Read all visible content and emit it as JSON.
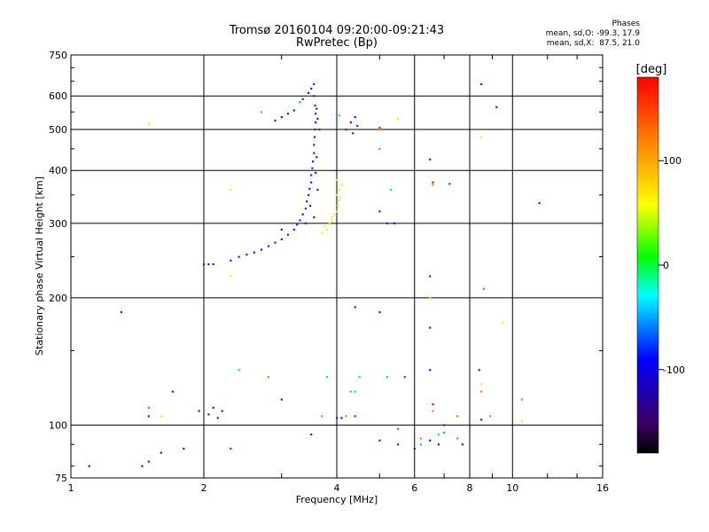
{
  "chart_data": {
    "type": "scatter",
    "title": "Tromsø 20160104 09:20:00-09:21:43",
    "subtitle": "RwPretec (Bp)",
    "xlabel": "Frequency [MHz]",
    "ylabel": "Stationary phase Virtual Height [km]",
    "xscale": "log2",
    "yscale": "log",
    "xlim": [
      1,
      16
    ],
    "ylim": [
      75,
      750
    ],
    "x_ticks": [
      1,
      2,
      4,
      6,
      8,
      10,
      16
    ],
    "x_tick_labels": [
      "1",
      "2",
      "4",
      "6",
      "8",
      "10",
      "16"
    ],
    "y_ticks": [
      75,
      100,
      200,
      300,
      400,
      500,
      600,
      750
    ],
    "y_tick_labels": [
      "75",
      "100",
      "200",
      "300",
      "400",
      "500",
      "600",
      "750"
    ],
    "grid": true,
    "stats": {
      "heading": "Phases",
      "line1": "mean, sd,O: -99.3, 17.9",
      "line2": "mean, sd,X:  87.5, 21.0"
    },
    "colorbar": {
      "label": "[deg]",
      "min": -180,
      "max": 180,
      "ticks": [
        100,
        0,
        -100
      ],
      "tick_labels": [
        "100",
        "0",
        "-100"
      ]
    },
    "series": [
      {
        "trace": "O",
        "color": "#1428e6",
        "points": [
          [
            2.0,
            240
          ],
          [
            2.05,
            240
          ],
          [
            2.1,
            240
          ],
          [
            2.3,
            245
          ],
          [
            2.4,
            250
          ],
          [
            2.5,
            253
          ],
          [
            2.6,
            256
          ],
          [
            2.7,
            260
          ],
          [
            2.8,
            265
          ],
          [
            2.9,
            270
          ],
          [
            3.0,
            275
          ],
          [
            3.1,
            282
          ],
          [
            3.2,
            290
          ],
          [
            3.25,
            298
          ],
          [
            3.3,
            305
          ],
          [
            3.35,
            315
          ],
          [
            3.4,
            325
          ],
          [
            3.42,
            338
          ],
          [
            3.45,
            350
          ],
          [
            3.47,
            362
          ],
          [
            3.5,
            375
          ],
          [
            3.5,
            390
          ],
          [
            3.52,
            405
          ],
          [
            3.53,
            420
          ],
          [
            3.55,
            440
          ],
          [
            3.55,
            460
          ],
          [
            3.56,
            480
          ],
          [
            3.57,
            500
          ],
          [
            3.58,
            520
          ],
          [
            3.58,
            545
          ],
          [
            3.57,
            570
          ],
          [
            3.55,
            600
          ],
          [
            3.5,
            625
          ],
          [
            3.55,
            640
          ],
          [
            3.45,
            610
          ],
          [
            3.35,
            590
          ],
          [
            3.6,
            560
          ],
          [
            3.62,
            530
          ],
          [
            3.65,
            500
          ],
          [
            3.6,
            430
          ],
          [
            3.58,
            395
          ],
          [
            3.62,
            360
          ],
          [
            3.48,
            330
          ],
          [
            3.55,
            310
          ],
          [
            3.4,
            300
          ],
          [
            2.9,
            525
          ],
          [
            3.0,
            535
          ],
          [
            3.1,
            545
          ],
          [
            3.2,
            555
          ],
          [
            3.3,
            580
          ],
          [
            4.2,
            500
          ],
          [
            4.3,
            520
          ],
          [
            4.4,
            535
          ],
          [
            4.45,
            510
          ],
          [
            4.35,
            490
          ],
          [
            1.95,
            108
          ],
          [
            2.05,
            106
          ],
          [
            2.1,
            110
          ],
          [
            2.15,
            104
          ],
          [
            2.2,
            108
          ],
          [
            1.45,
            80
          ],
          [
            1.6,
            86
          ],
          [
            1.8,
            88
          ],
          [
            1.7,
            120
          ],
          [
            1.5,
            105
          ],
          [
            1.3,
            185
          ],
          [
            1.1,
            80
          ],
          [
            3.0,
            115
          ],
          [
            3.5,
            95
          ],
          [
            4.0,
            104
          ],
          [
            4.1,
            104
          ],
          [
            5.0,
            92
          ],
          [
            5.5,
            90
          ],
          [
            6.0,
            88
          ],
          [
            6.5,
            92
          ],
          [
            6.8,
            90
          ],
          [
            7.0,
            100
          ],
          [
            8.0,
            100
          ],
          [
            8.5,
            103
          ],
          [
            8.5,
            640
          ],
          [
            9.2,
            565
          ],
          [
            11.5,
            335
          ],
          [
            6.5,
            425
          ],
          [
            5.0,
            320
          ],
          [
            5.2,
            300
          ],
          [
            6.5,
            225
          ],
          [
            6.5,
            135
          ],
          [
            5.0,
            185
          ],
          [
            4.4,
            190
          ]
        ]
      },
      {
        "trace": "X",
        "color": "#f0f014",
        "points": [
          [
            3.7,
            285
          ],
          [
            3.8,
            290
          ],
          [
            3.85,
            300
          ],
          [
            3.9,
            310
          ],
          [
            3.95,
            315
          ],
          [
            4.0,
            320
          ],
          [
            4.02,
            330
          ],
          [
            4.05,
            340
          ],
          [
            4.0,
            350
          ],
          [
            4.05,
            360
          ],
          [
            4.1,
            370
          ],
          [
            4.0,
            380
          ],
          [
            3.75,
            295
          ],
          [
            3.9,
            305
          ],
          [
            4.08,
            345
          ],
          [
            5.5,
            530
          ],
          [
            2.3,
            360
          ],
          [
            2.3,
            225
          ],
          [
            1.5,
            515
          ],
          [
            8.5,
            480
          ],
          [
            9.5,
            175
          ],
          [
            8.5,
            125
          ],
          [
            10.5,
            102
          ],
          [
            6.5,
            200
          ],
          [
            1.6,
            105
          ]
        ]
      },
      {
        "trace": "other",
        "color": "#14d2d2",
        "points": [
          [
            4.05,
            540
          ],
          [
            3.3,
            580
          ],
          [
            2.4,
            135
          ],
          [
            3.8,
            130
          ],
          [
            4.3,
            120
          ],
          [
            5.2,
            130
          ],
          [
            6.2,
            90
          ],
          [
            7.5,
            93
          ],
          [
            8.9,
            105
          ],
          [
            10.5,
            115
          ],
          [
            4.5,
            130
          ],
          [
            3.7,
            105
          ],
          [
            5.3,
            360
          ],
          [
            6.8,
            95
          ],
          [
            4.4,
            120
          ]
        ]
      },
      {
        "trace": "other",
        "color": "#f08214",
        "points": [
          [
            2.7,
            550
          ],
          [
            5.0,
            500
          ],
          [
            5.0,
            450
          ],
          [
            6.6,
            370
          ],
          [
            6.2,
            93
          ],
          [
            7.5,
            105
          ],
          [
            8.5,
            120
          ],
          [
            6.6,
            108
          ],
          [
            4.2,
            105
          ],
          [
            2.8,
            130
          ]
        ]
      },
      {
        "trace": "other",
        "color": "#e61414",
        "points": [
          [
            5.0,
            505
          ],
          [
            6.6,
            375
          ],
          [
            7.2,
            372
          ],
          [
            4.4,
            105
          ],
          [
            2.3,
            88
          ],
          [
            5.7,
            130
          ],
          [
            6.6,
            112
          ]
        ]
      },
      {
        "trace": "other",
        "color": "#14c814",
        "points": [
          [
            1.5,
            110
          ],
          [
            5.5,
            98
          ],
          [
            7.0,
            96
          ],
          [
            8.6,
            210
          ]
        ]
      },
      {
        "trace": "other",
        "color": "#50148c",
        "points": [
          [
            3.0,
            290
          ],
          [
            5.4,
            300
          ],
          [
            6.5,
            170
          ],
          [
            7.7,
            90
          ],
          [
            8.4,
            135
          ],
          [
            1.5,
            82
          ]
        ]
      }
    ]
  }
}
